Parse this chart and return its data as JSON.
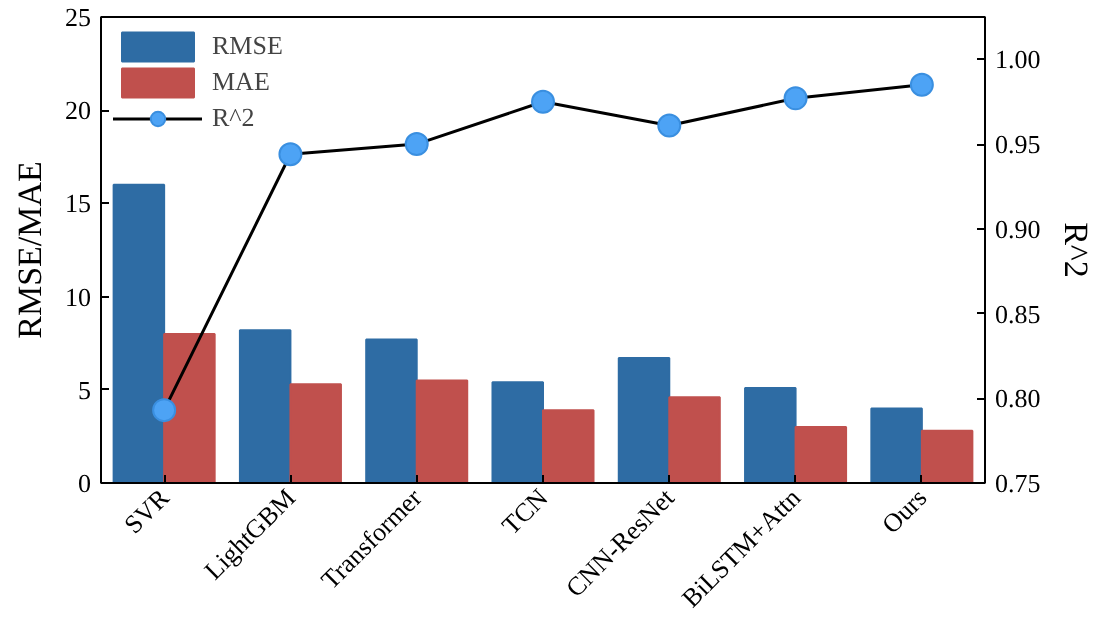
{
  "chart_data": {
    "type": "bar",
    "categories": [
      "SVR",
      "LightGBM",
      "Transformer",
      "TCN",
      "CNN-ResNet",
      "BiLSTM+Attn",
      "Ours"
    ],
    "ylabel": "RMSE/MAE",
    "y2label": "R^2",
    "ylim": [
      0,
      25
    ],
    "yticks": [
      0,
      5,
      10,
      15,
      20,
      25
    ],
    "y2lim": [
      0.75,
      1.025
    ],
    "y2ticks": [
      0.75,
      {
        "value": 0.8,
        "label": "0.80"
      },
      0.85,
      {
        "value": 0.9,
        "label": "0.90"
      },
      0.95,
      {
        "value": 1.0,
        "label": "1.00"
      }
    ],
    "series": [
      {
        "name": "RMSE",
        "color": "#2e6ca4",
        "values": [
          16.0,
          8.2,
          7.7,
          5.4,
          6.7,
          5.1,
          4.0
        ]
      },
      {
        "name": "MAE",
        "color": "#c0504d",
        "values": [
          8.0,
          5.3,
          5.5,
          3.9,
          4.6,
          3.0,
          2.8
        ]
      },
      {
        "name": "R^2",
        "type": "line",
        "axis": "y2",
        "color": "#000000",
        "marker": "circle",
        "values": [
          0.793,
          0.944,
          0.95,
          0.975,
          0.961,
          0.977,
          0.985
        ]
      }
    ],
    "legend": "top left",
    "grid": false
  }
}
